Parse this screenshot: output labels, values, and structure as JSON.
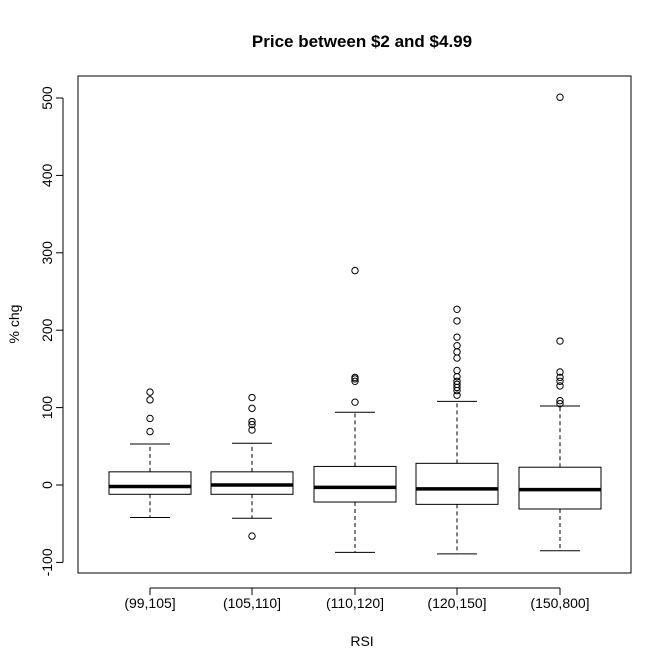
{
  "chart_data": {
    "type": "boxplot",
    "title": "Price between $2 and $4.99",
    "xlabel": "RSI",
    "ylabel": "% chg",
    "ylim": [
      -110,
      520
    ],
    "yticks": [
      -100,
      0,
      100,
      200,
      300,
      400,
      500
    ],
    "categories": [
      "(99,105]",
      "(105,110]",
      "(110,120]",
      "(120,150]",
      "(150,800]"
    ],
    "boxes": [
      {
        "category": "(99,105]",
        "whisker_low": -42,
        "q1": -12,
        "median": -2,
        "q3": 17,
        "whisker_high": 53,
        "outliers": [
          69,
          86,
          110,
          120
        ]
      },
      {
        "category": "(105,110]",
        "whisker_low": -43,
        "q1": -12,
        "median": 0,
        "q3": 17,
        "whisker_high": 54,
        "outliers": [
          -66,
          71,
          78,
          82,
          99,
          113
        ]
      },
      {
        "category": "(110,120]",
        "whisker_low": -87,
        "q1": -22,
        "median": -3,
        "q3": 24,
        "whisker_high": 94,
        "outliers": [
          107,
          134,
          137,
          139,
          277
        ]
      },
      {
        "category": "(120,150]",
        "whisker_low": -89,
        "q1": -25,
        "median": -5,
        "q3": 28,
        "whisker_high": 108,
        "outliers": [
          116,
          122,
          126,
          130,
          134,
          140,
          148,
          164,
          172,
          180,
          191,
          212,
          227
        ]
      },
      {
        "category": "(150,800]",
        "whisker_low": -85,
        "q1": -31,
        "median": -6,
        "q3": 23,
        "whisker_high": 102,
        "outliers": [
          105,
          109,
          128,
          134,
          139,
          146,
          186,
          501
        ]
      }
    ]
  }
}
